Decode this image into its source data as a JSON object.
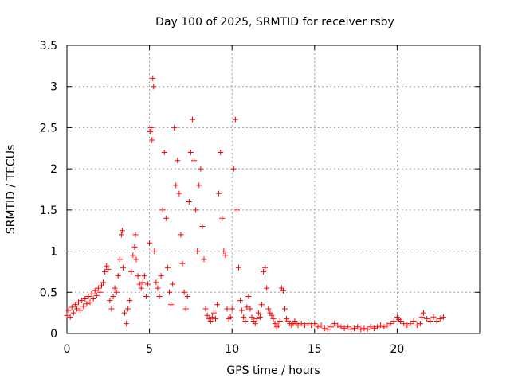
{
  "chart_data": {
    "type": "scatter",
    "title": "Day 100 of 2025, SRMTID for receiver rsby",
    "xlabel": "GPS time / hours",
    "ylabel": "SRMTID / TECUs",
    "xlim": [
      0,
      25
    ],
    "ylim": [
      0,
      3.5
    ],
    "xticks": [
      0,
      5,
      10,
      15,
      20
    ],
    "yticks": [
      0,
      0.5,
      1,
      1.5,
      2,
      2.5,
      3,
      3.5
    ],
    "xtick_labels": [
      "0",
      "5",
      "10",
      "15",
      "20"
    ],
    "ytick_labels": [
      "0",
      "0.5",
      "1",
      "1.5",
      "2",
      "2.5",
      "3",
      "3.5"
    ],
    "grid": true,
    "marker": "+",
    "series": [
      {
        "name": "SRMTID",
        "color": "#ff0000",
        "points": [
          [
            0.0,
            0.22
          ],
          [
            0.1,
            0.28
          ],
          [
            0.2,
            0.2
          ],
          [
            0.3,
            0.32
          ],
          [
            0.4,
            0.25
          ],
          [
            0.5,
            0.35
          ],
          [
            0.6,
            0.3
          ],
          [
            0.7,
            0.38
          ],
          [
            0.8,
            0.28
          ],
          [
            0.9,
            0.4
          ],
          [
            1.0,
            0.33
          ],
          [
            1.1,
            0.42
          ],
          [
            1.2,
            0.36
          ],
          [
            1.3,
            0.45
          ],
          [
            1.4,
            0.38
          ],
          [
            1.5,
            0.48
          ],
          [
            1.6,
            0.42
          ],
          [
            1.7,
            0.52
          ],
          [
            1.8,
            0.46
          ],
          [
            1.9,
            0.55
          ],
          [
            2.0,
            0.5
          ],
          [
            2.1,
            0.58
          ],
          [
            2.2,
            0.62
          ],
          [
            2.3,
            0.75
          ],
          [
            2.4,
            0.82
          ],
          [
            2.5,
            0.78
          ],
          [
            2.6,
            0.4
          ],
          [
            2.7,
            0.3
          ],
          [
            2.8,
            0.45
          ],
          [
            2.9,
            0.55
          ],
          [
            3.0,
            0.5
          ],
          [
            3.1,
            0.7
          ],
          [
            3.2,
            0.9
          ],
          [
            3.3,
            1.2
          ],
          [
            3.35,
            1.25
          ],
          [
            3.4,
            0.8
          ],
          [
            3.5,
            0.25
          ],
          [
            3.6,
            0.12
          ],
          [
            3.7,
            0.3
          ],
          [
            3.8,
            0.4
          ],
          [
            3.9,
            0.75
          ],
          [
            4.0,
            0.95
          ],
          [
            4.1,
            1.05
          ],
          [
            4.15,
            1.2
          ],
          [
            4.2,
            0.9
          ],
          [
            4.3,
            0.7
          ],
          [
            4.4,
            0.6
          ],
          [
            4.5,
            0.55
          ],
          [
            4.6,
            0.62
          ],
          [
            4.7,
            0.7
          ],
          [
            4.8,
            0.45
          ],
          [
            4.9,
            0.6
          ],
          [
            5.0,
            1.1
          ],
          [
            5.05,
            2.45
          ],
          [
            5.1,
            2.5
          ],
          [
            5.15,
            2.35
          ],
          [
            5.2,
            3.1
          ],
          [
            5.25,
            3.0
          ],
          [
            5.3,
            1.0
          ],
          [
            5.4,
            0.62
          ],
          [
            5.5,
            0.55
          ],
          [
            5.6,
            0.45
          ],
          [
            5.7,
            0.7
          ],
          [
            5.8,
            1.5
          ],
          [
            5.9,
            2.2
          ],
          [
            6.0,
            1.4
          ],
          [
            6.1,
            0.8
          ],
          [
            6.2,
            0.5
          ],
          [
            6.3,
            0.35
          ],
          [
            6.4,
            0.6
          ],
          [
            6.5,
            2.5
          ],
          [
            6.6,
            1.8
          ],
          [
            6.7,
            2.1
          ],
          [
            6.8,
            1.7
          ],
          [
            6.9,
            1.2
          ],
          [
            7.0,
            0.85
          ],
          [
            7.1,
            0.5
          ],
          [
            7.2,
            0.3
          ],
          [
            7.3,
            0.45
          ],
          [
            7.4,
            1.6
          ],
          [
            7.5,
            2.2
          ],
          [
            7.6,
            2.6
          ],
          [
            7.7,
            2.1
          ],
          [
            7.8,
            1.5
          ],
          [
            7.9,
            1.0
          ],
          [
            8.0,
            1.8
          ],
          [
            8.1,
            2.0
          ],
          [
            8.2,
            1.3
          ],
          [
            8.3,
            0.9
          ],
          [
            8.4,
            0.3
          ],
          [
            8.5,
            0.22
          ],
          [
            8.6,
            0.18
          ],
          [
            8.7,
            0.15
          ],
          [
            8.8,
            0.2
          ],
          [
            8.9,
            0.25
          ],
          [
            9.0,
            0.18
          ],
          [
            9.1,
            0.35
          ],
          [
            9.2,
            1.7
          ],
          [
            9.3,
            2.2
          ],
          [
            9.4,
            1.4
          ],
          [
            9.5,
            1.0
          ],
          [
            9.6,
            0.95
          ],
          [
            9.7,
            0.3
          ],
          [
            9.8,
            0.18
          ],
          [
            9.9,
            0.2
          ],
          [
            10.0,
            0.3
          ],
          [
            10.1,
            2.0
          ],
          [
            10.2,
            2.6
          ],
          [
            10.3,
            1.5
          ],
          [
            10.4,
            0.8
          ],
          [
            10.5,
            0.4
          ],
          [
            10.6,
            0.28
          ],
          [
            10.7,
            0.2
          ],
          [
            10.8,
            0.15
          ],
          [
            10.9,
            0.32
          ],
          [
            11.0,
            0.45
          ],
          [
            11.1,
            0.3
          ],
          [
            11.2,
            0.2
          ],
          [
            11.3,
            0.15
          ],
          [
            11.4,
            0.12
          ],
          [
            11.5,
            0.18
          ],
          [
            11.6,
            0.25
          ],
          [
            11.7,
            0.2
          ],
          [
            11.8,
            0.35
          ],
          [
            11.9,
            0.75
          ],
          [
            12.0,
            0.8
          ],
          [
            12.1,
            0.55
          ],
          [
            12.2,
            0.3
          ],
          [
            12.3,
            0.25
          ],
          [
            12.4,
            0.22
          ],
          [
            12.5,
            0.18
          ],
          [
            12.6,
            0.12
          ],
          [
            12.7,
            0.08
          ],
          [
            12.8,
            0.1
          ],
          [
            12.9,
            0.15
          ],
          [
            13.0,
            0.55
          ],
          [
            13.1,
            0.52
          ],
          [
            13.2,
            0.3
          ],
          [
            13.3,
            0.18
          ],
          [
            13.4,
            0.15
          ],
          [
            13.5,
            0.12
          ],
          [
            13.6,
            0.1
          ],
          [
            13.7,
            0.12
          ],
          [
            13.8,
            0.15
          ],
          [
            13.9,
            0.12
          ],
          [
            14.0,
            0.1
          ],
          [
            14.2,
            0.12
          ],
          [
            14.4,
            0.1
          ],
          [
            14.6,
            0.12
          ],
          [
            14.8,
            0.1
          ],
          [
            15.0,
            0.12
          ],
          [
            15.2,
            0.08
          ],
          [
            15.4,
            0.1
          ],
          [
            15.6,
            0.06
          ],
          [
            15.8,
            0.05
          ],
          [
            16.0,
            0.08
          ],
          [
            16.2,
            0.12
          ],
          [
            16.4,
            0.1
          ],
          [
            16.6,
            0.08
          ],
          [
            16.8,
            0.06
          ],
          [
            17.0,
            0.08
          ],
          [
            17.2,
            0.05
          ],
          [
            17.4,
            0.06
          ],
          [
            17.6,
            0.08
          ],
          [
            17.8,
            0.05
          ],
          [
            18.0,
            0.06
          ],
          [
            18.2,
            0.05
          ],
          [
            18.4,
            0.08
          ],
          [
            18.6,
            0.06
          ],
          [
            18.8,
            0.08
          ],
          [
            19.0,
            0.1
          ],
          [
            19.2,
            0.08
          ],
          [
            19.4,
            0.1
          ],
          [
            19.6,
            0.12
          ],
          [
            19.8,
            0.15
          ],
          [
            20.0,
            0.2
          ],
          [
            20.1,
            0.17
          ],
          [
            20.2,
            0.15
          ],
          [
            20.4,
            0.12
          ],
          [
            20.6,
            0.1
          ],
          [
            20.8,
            0.12
          ],
          [
            21.0,
            0.15
          ],
          [
            21.2,
            0.1
          ],
          [
            21.4,
            0.12
          ],
          [
            21.5,
            0.2
          ],
          [
            21.6,
            0.25
          ],
          [
            21.8,
            0.18
          ],
          [
            22.0,
            0.15
          ],
          [
            22.2,
            0.2
          ],
          [
            22.4,
            0.15
          ],
          [
            22.6,
            0.18
          ],
          [
            22.8,
            0.2
          ]
        ]
      }
    ]
  }
}
